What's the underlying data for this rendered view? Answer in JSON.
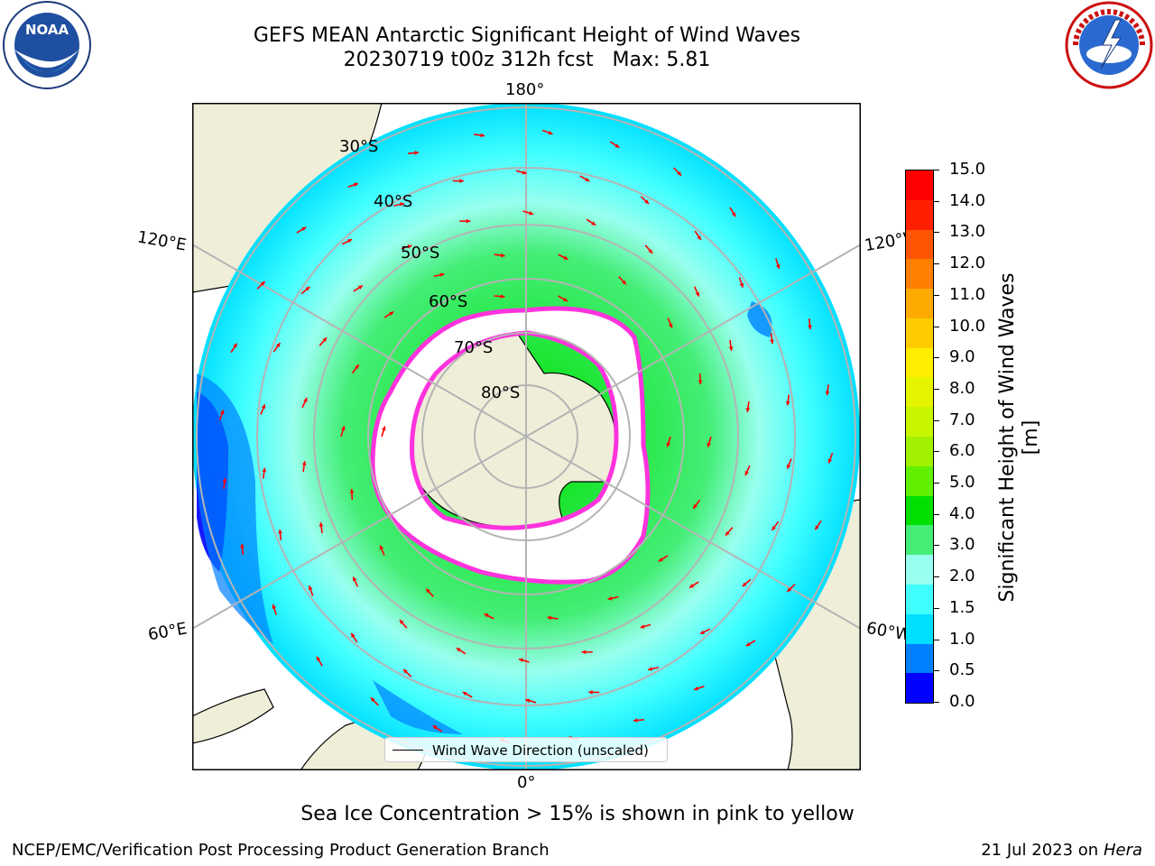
{
  "title_line1": "GEFS MEAN Antarctic Significant Height of Wind Waves",
  "title_line2": "20230719 t00z 312h fcst   Max: 5.81",
  "longitude_labels": {
    "top": "180°",
    "left": "120°E",
    "right": "120°W",
    "lower_left": "60°E",
    "lower_right": "60°W",
    "bottom": "0°"
  },
  "latitude_labels": [
    "30°S",
    "40°S",
    "50°S",
    "60°S",
    "70°S",
    "80°S"
  ],
  "colorbar": {
    "label": "Significant Height of Wind Waves [m]",
    "ticks": [
      "15.0",
      "14.0",
      "13.0",
      "12.0",
      "11.0",
      "10.0",
      "9.0",
      "8.0",
      "7.0",
      "6.0",
      "5.0",
      "4.0",
      "3.0",
      "2.0",
      "1.5",
      "1.0",
      "0.5",
      "0.0"
    ],
    "colors": [
      "#ff0000",
      "#ff2000",
      "#ff5500",
      "#ff7f00",
      "#ffaa00",
      "#ffcc00",
      "#ffee00",
      "#e5f500",
      "#c8f500",
      "#a0f000",
      "#60f000",
      "#00e000",
      "#44ee77",
      "#99ffee",
      "#40ffff",
      "#00dfff",
      "#0080ff",
      "#0000ff"
    ]
  },
  "legend": {
    "label": "Wind Wave Direction (unscaled)"
  },
  "caption": "Sea Ice Concentration > 15% is shown in pink to yellow",
  "footer_left": "NCEP/EMC/Verification Post Processing Product Generation Branch",
  "footer_right_date": "21 Jul 2023 on ",
  "footer_right_host": "Hera",
  "logos": {
    "left": "NOAA",
    "right": "NATIONAL WEATHER SERVICE"
  },
  "colors": {
    "land": "#efeed9",
    "ocean_base": "#99ffff",
    "arrow": "#ff0000",
    "grid": "#b4b4b4",
    "ice_edge": "#ff33dd"
  }
}
